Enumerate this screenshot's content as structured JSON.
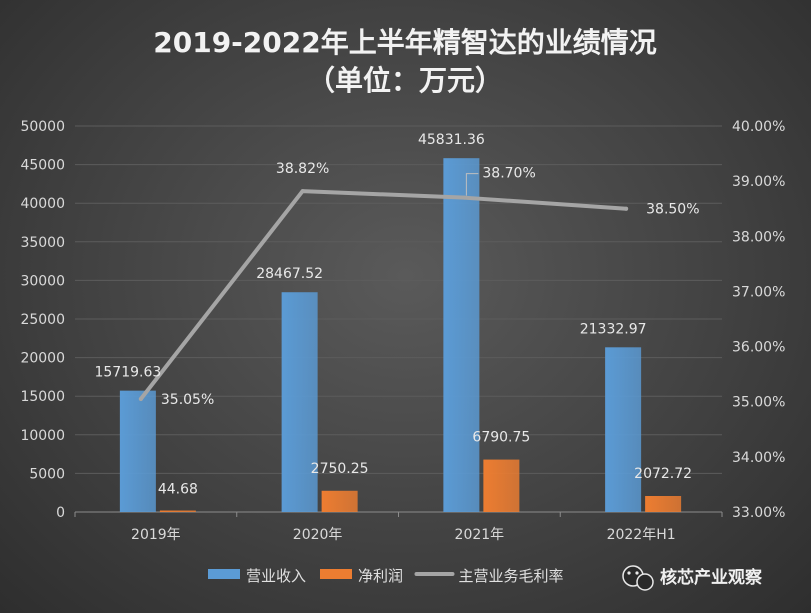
{
  "chart_data": {
    "type": "bar",
    "title": "2019-2022年上半年精智达的业绩情况",
    "subtitle": "（单位：万元）",
    "categories": [
      "2019年",
      "2020年",
      "2021年",
      "2022年H1"
    ],
    "series": [
      {
        "name": "营业收入",
        "type": "bar",
        "axis": "left",
        "color": "#5b9bd5",
        "values": [
          15719.63,
          28467.52,
          45831.36,
          21332.97
        ],
        "labels": [
          "15719.63",
          "28467.52",
          "45831.36",
          "21332.97"
        ]
      },
      {
        "name": "净利润",
        "type": "bar",
        "axis": "left",
        "color": "#ed7d31",
        "values": [
          44.68,
          2750.25,
          6790.75,
          2072.72
        ],
        "labels": [
          "44.68",
          "2750.25",
          "6790.75",
          "2072.72"
        ]
      },
      {
        "name": "主营业务毛利率",
        "type": "line",
        "axis": "right",
        "color": "#a5a5a5",
        "values": [
          35.05,
          38.82,
          38.7,
          38.5
        ],
        "labels": [
          "35.05%",
          "38.82%",
          "38.70%",
          "38.50%"
        ]
      }
    ],
    "ylim_left": [
      0,
      50000
    ],
    "ylim_right": [
      33.0,
      40.0
    ],
    "yticks_left": [
      "0",
      "5000",
      "10000",
      "15000",
      "20000",
      "25000",
      "30000",
      "35000",
      "40000",
      "45000",
      "50000"
    ],
    "yticks_right": [
      "33.00%",
      "34.00%",
      "35.00%",
      "36.00%",
      "37.00%",
      "38.00%",
      "39.00%",
      "40.00%"
    ],
    "grid": true,
    "legend": "bottom"
  },
  "watermark": {
    "text": "核芯产业观察",
    "icon": "wechat-icon"
  }
}
